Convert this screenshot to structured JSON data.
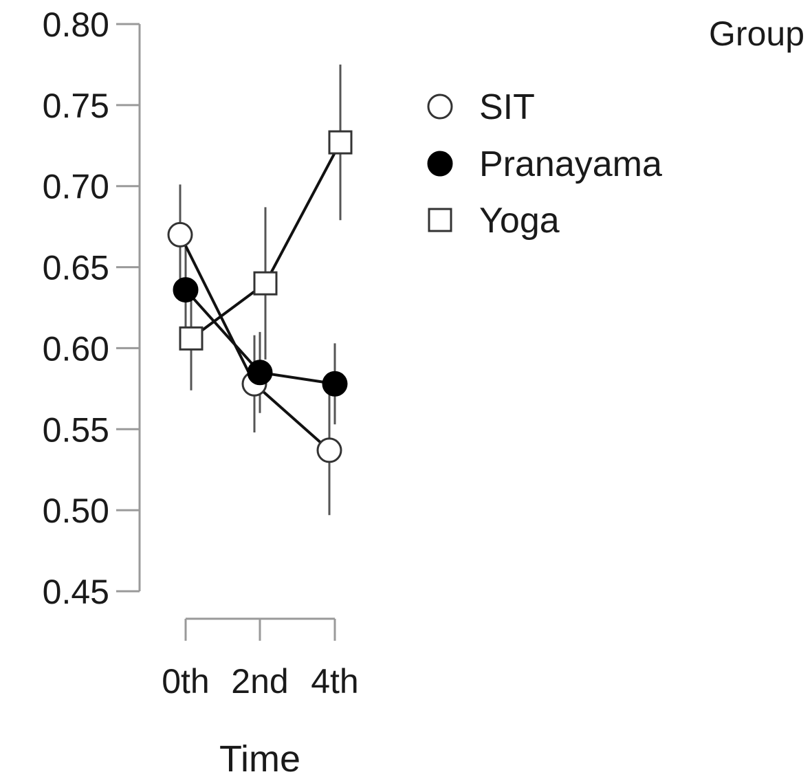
{
  "chart_data": {
    "type": "line",
    "title": "",
    "xlabel": "Time",
    "ylabel": "",
    "ylim": [
      0.45,
      0.8
    ],
    "yticks": [
      "0.45",
      "0.50",
      "0.55",
      "0.60",
      "0.65",
      "0.70",
      "0.75",
      "0.80"
    ],
    "categories": [
      "0th",
      "2nd",
      "4th"
    ],
    "grid": false,
    "legend": {
      "title": "Group",
      "position": "top-right"
    },
    "series": [
      {
        "name": "SIT",
        "marker": "open-circle",
        "values": [
          0.67,
          0.578,
          0.537
        ],
        "error_low": [
          0.641,
          0.548,
          0.497
        ],
        "error_high": [
          0.701,
          0.608,
          0.577
        ]
      },
      {
        "name": "Pranayama",
        "marker": "filled-circle",
        "values": [
          0.636,
          0.585,
          0.578
        ],
        "error_low": [
          0.606,
          0.56,
          0.553
        ],
        "error_high": [
          0.666,
          0.61,
          0.603
        ]
      },
      {
        "name": "Yoga",
        "marker": "open-square",
        "values": [
          0.606,
          0.64,
          0.727
        ],
        "error_low": [
          0.574,
          0.593,
          0.679
        ],
        "error_high": [
          0.638,
          0.687,
          0.775
        ]
      }
    ]
  }
}
